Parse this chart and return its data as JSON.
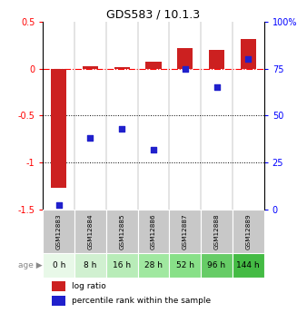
{
  "title": "GDS583 / 10.1.3",
  "samples": [
    "GSM12883",
    "GSM12884",
    "GSM12885",
    "GSM12886",
    "GSM12887",
    "GSM12888",
    "GSM12889"
  ],
  "ages": [
    "0 h",
    "8 h",
    "16 h",
    "28 h",
    "52 h",
    "96 h",
    "144 h"
  ],
  "log_ratio": [
    -1.27,
    0.03,
    0.02,
    0.08,
    0.22,
    0.2,
    0.32
  ],
  "percentile_rank": [
    2,
    38,
    43,
    32,
    75,
    65,
    80
  ],
  "bar_color": "#cc2020",
  "dot_color": "#2020cc",
  "ylim_left": [
    -1.5,
    0.5
  ],
  "ylim_right": [
    0,
    100
  ],
  "yticks_left": [
    -1.5,
    -1.0,
    -0.5,
    0.0,
    0.5
  ],
  "ytick_labels_left": [
    "-1.5",
    "-1",
    "-0.5",
    "0",
    "0.5"
  ],
  "yticks_right": [
    0,
    25,
    50,
    75,
    100
  ],
  "ytick_labels_right": [
    "0",
    "25",
    "50",
    "75",
    "100%"
  ],
  "dotted_lines": [
    -0.5,
    -1.0
  ],
  "legend_labels": [
    "log ratio",
    "percentile rank within the sample"
  ],
  "sample_bg_color": "#c8c8c8",
  "age_colors": [
    "#e8f8e8",
    "#d0f0d0",
    "#b8ecb8",
    "#a0e8a0",
    "#88e088",
    "#66cc66",
    "#44bb44"
  ],
  "bar_width": 0.5
}
